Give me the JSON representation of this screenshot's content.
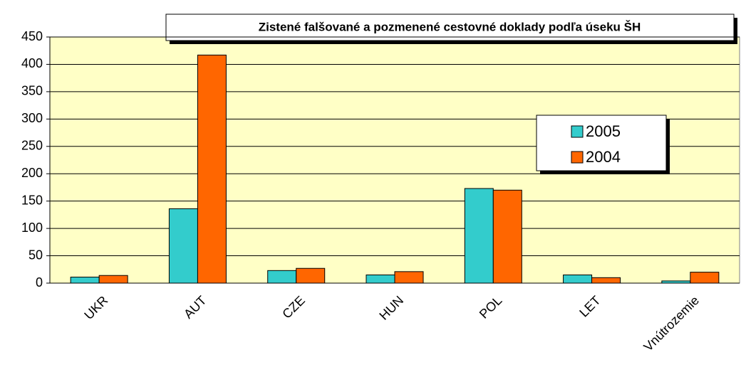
{
  "chart_data": {
    "type": "bar",
    "title": "Zistené falšované a pozmenené cestovné doklady podľa úseku ŠH",
    "categories": [
      "UKR",
      "AUT",
      "CZE",
      "HUN",
      "POL",
      "LET",
      "Vnútrozemie"
    ],
    "series": [
      {
        "name": "2005",
        "color": "#33cccc",
        "values": [
          11,
          136,
          23,
          15,
          173,
          15,
          4
        ]
      },
      {
        "name": "2004",
        "color": "#ff6600",
        "values": [
          14,
          417,
          27,
          21,
          170,
          10,
          20
        ]
      }
    ],
    "ylim": [
      0,
      450
    ],
    "yticks": [
      0,
      50,
      100,
      150,
      200,
      250,
      300,
      350,
      400,
      450
    ],
    "grid": true
  }
}
